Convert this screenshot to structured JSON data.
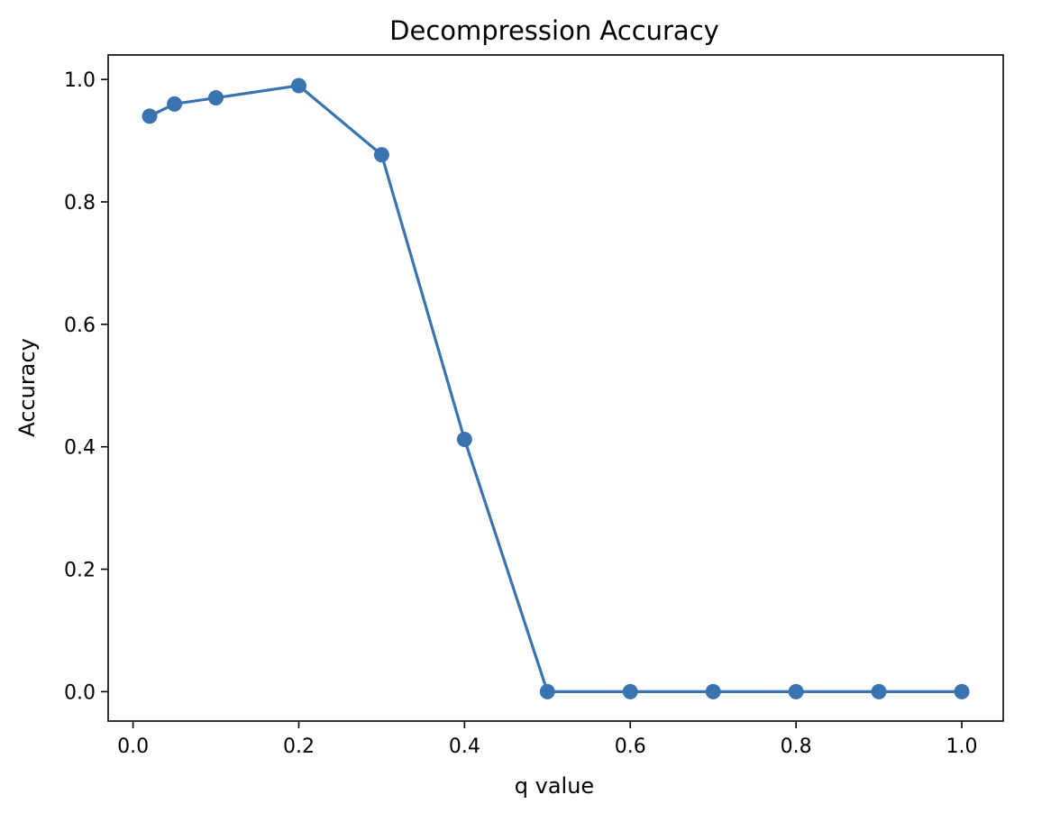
{
  "chart_data": {
    "type": "line",
    "title": "Decompression Accuracy",
    "xlabel": "q value",
    "ylabel": "Accuracy",
    "xlim": [
      -0.03,
      1.05
    ],
    "ylim": [
      -0.048,
      1.04
    ],
    "xticks": [
      0.0,
      0.2,
      0.4,
      0.6,
      0.8,
      1.0
    ],
    "xtick_labels": [
      "0.0",
      "0.2",
      "0.4",
      "0.6",
      "0.8",
      "1.0"
    ],
    "yticks": [
      0.0,
      0.2,
      0.4,
      0.6,
      0.8,
      1.0
    ],
    "ytick_labels": [
      "0.0",
      "0.2",
      "0.4",
      "0.6",
      "0.8",
      "1.0"
    ],
    "grid": false,
    "legend": "none",
    "series": [
      {
        "color": "#3a74b0",
        "marker": "circle",
        "x": [
          0.02,
          0.05,
          0.1,
          0.2,
          0.3,
          0.4,
          0.5,
          0.6,
          0.7,
          0.8,
          0.9,
          1.0
        ],
        "y": [
          0.94,
          0.96,
          0.97,
          0.99,
          0.877,
          0.412,
          0.0,
          0.0,
          0.0,
          0.0,
          0.0,
          0.0
        ]
      }
    ]
  }
}
